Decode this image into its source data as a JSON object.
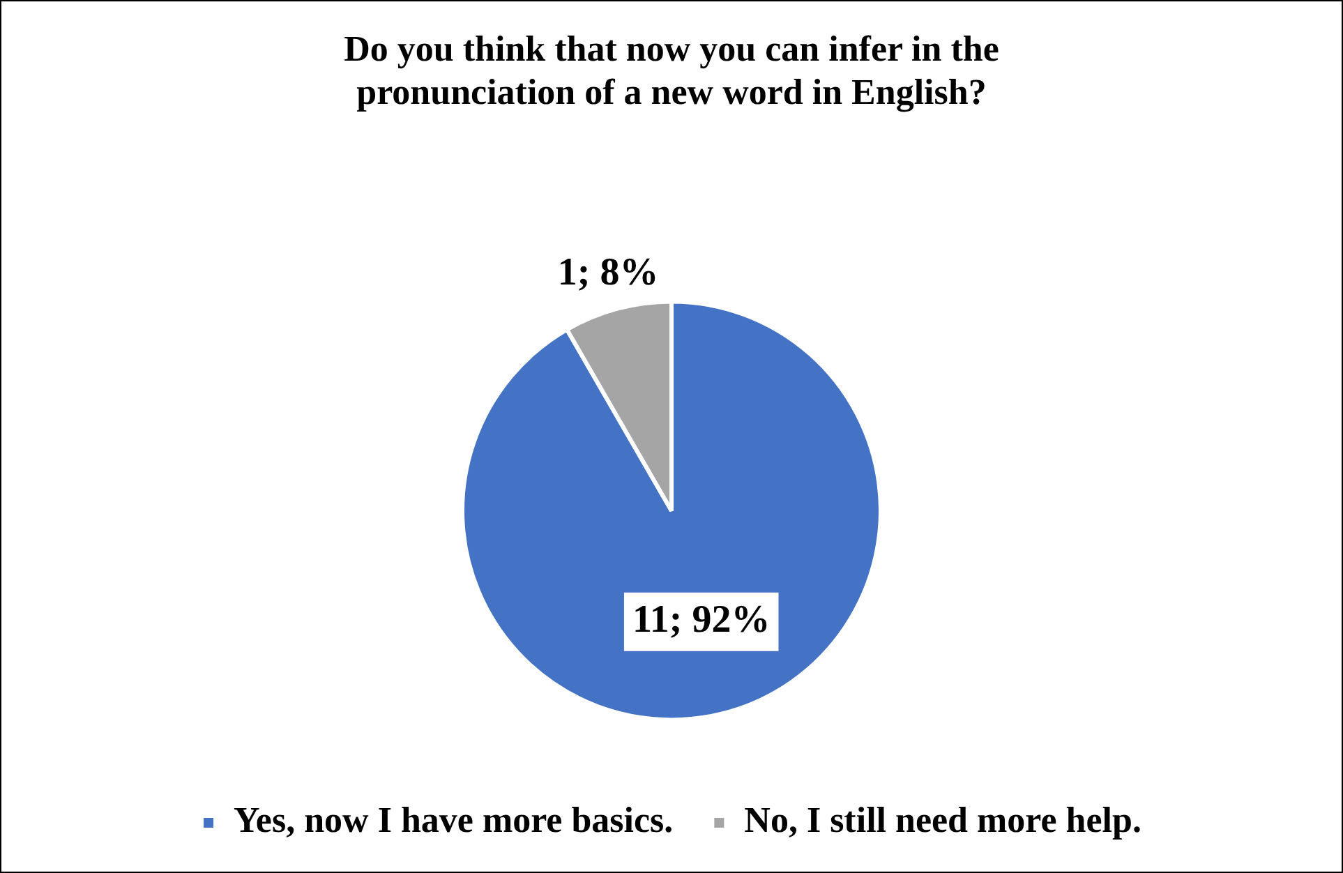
{
  "chart_data": {
    "type": "pie",
    "title": "Do you think that now you can infer in the pronunciation of a new word in English?",
    "categories": [
      "Yes, now I have more basics.",
      "No, I still need more help."
    ],
    "values": [
      11,
      1
    ],
    "colors": [
      "#4472c4",
      "#a5a5a5"
    ],
    "value_labels": [
      "11; 92%",
      "1; 8%"
    ],
    "legend": "bottom"
  }
}
